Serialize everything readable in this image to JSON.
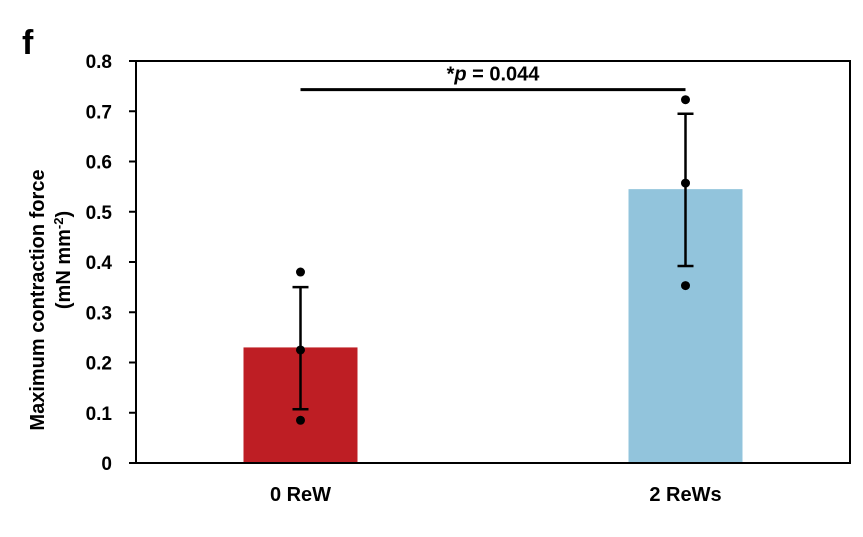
{
  "panel_label": "f",
  "chart_data": {
    "type": "bar",
    "categories": [
      "0 ReW",
      "2 ReWs"
    ],
    "values": [
      0.23,
      0.545
    ],
    "error_bars": [
      {
        "lower": 0.107,
        "upper": 0.35
      },
      {
        "lower": 0.392,
        "upper": 0.695
      }
    ],
    "points": [
      [
        0.38,
        0.225,
        0.085
      ],
      [
        0.723,
        0.557,
        0.353
      ]
    ],
    "colors": [
      "#be1e24",
      "#92c4dc"
    ],
    "ylabel_line1": "Maximum contraction force",
    "ylabel_line2_prefix": "(mN mm",
    "ylabel_line2_sup": "-2",
    "ylabel_line2_suffix": ")",
    "ylim": [
      0,
      0.8
    ],
    "yticks": [
      "0",
      "0.1",
      "0.2",
      "0.3",
      "0.4",
      "0.5",
      "0.6",
      "0.7",
      "0.8"
    ],
    "ytick_values": [
      0,
      0.1,
      0.2,
      0.3,
      0.4,
      0.5,
      0.6,
      0.7,
      0.8
    ],
    "significance": {
      "star": "*",
      "p_symbol": "p",
      "rest": " = 0.044",
      "y": 0.743,
      "between": [
        0,
        1
      ]
    },
    "grid": false,
    "legend": "none"
  }
}
